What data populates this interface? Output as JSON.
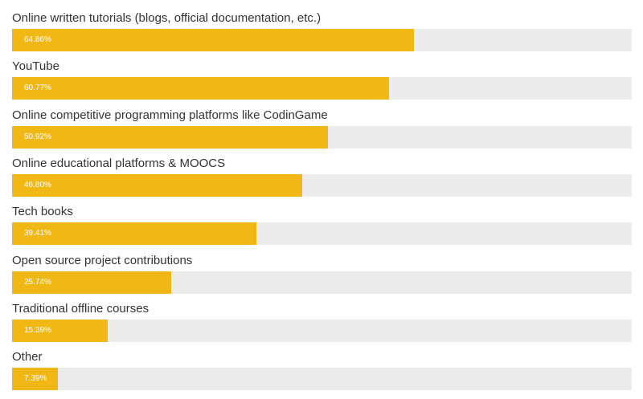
{
  "chart_data": {
    "type": "bar",
    "orientation": "horizontal",
    "categories": [
      "Online written tutorials (blogs, official documentation, etc.)",
      "YouTube",
      "Online competitive programming platforms like CodinGame",
      "Online educational platforms & MOOCS",
      "Tech books",
      "Open source project contributions",
      "Traditional offline courses",
      "Other"
    ],
    "values": [
      64.86,
      60.77,
      50.92,
      46.8,
      39.41,
      25.74,
      15.39,
      7.39
    ],
    "value_labels": [
      "64.86%",
      "60.77%",
      "50.92%",
      "46.80%",
      "39.41%",
      "25.74%",
      "15.39%",
      "7.39%"
    ],
    "xlim": [
      0,
      100
    ],
    "grid": false,
    "legend": "none",
    "colors": {
      "bar": "#f1b815",
      "track": "#ececec",
      "label_text": "#333333",
      "value_text": "#ffffff"
    }
  }
}
